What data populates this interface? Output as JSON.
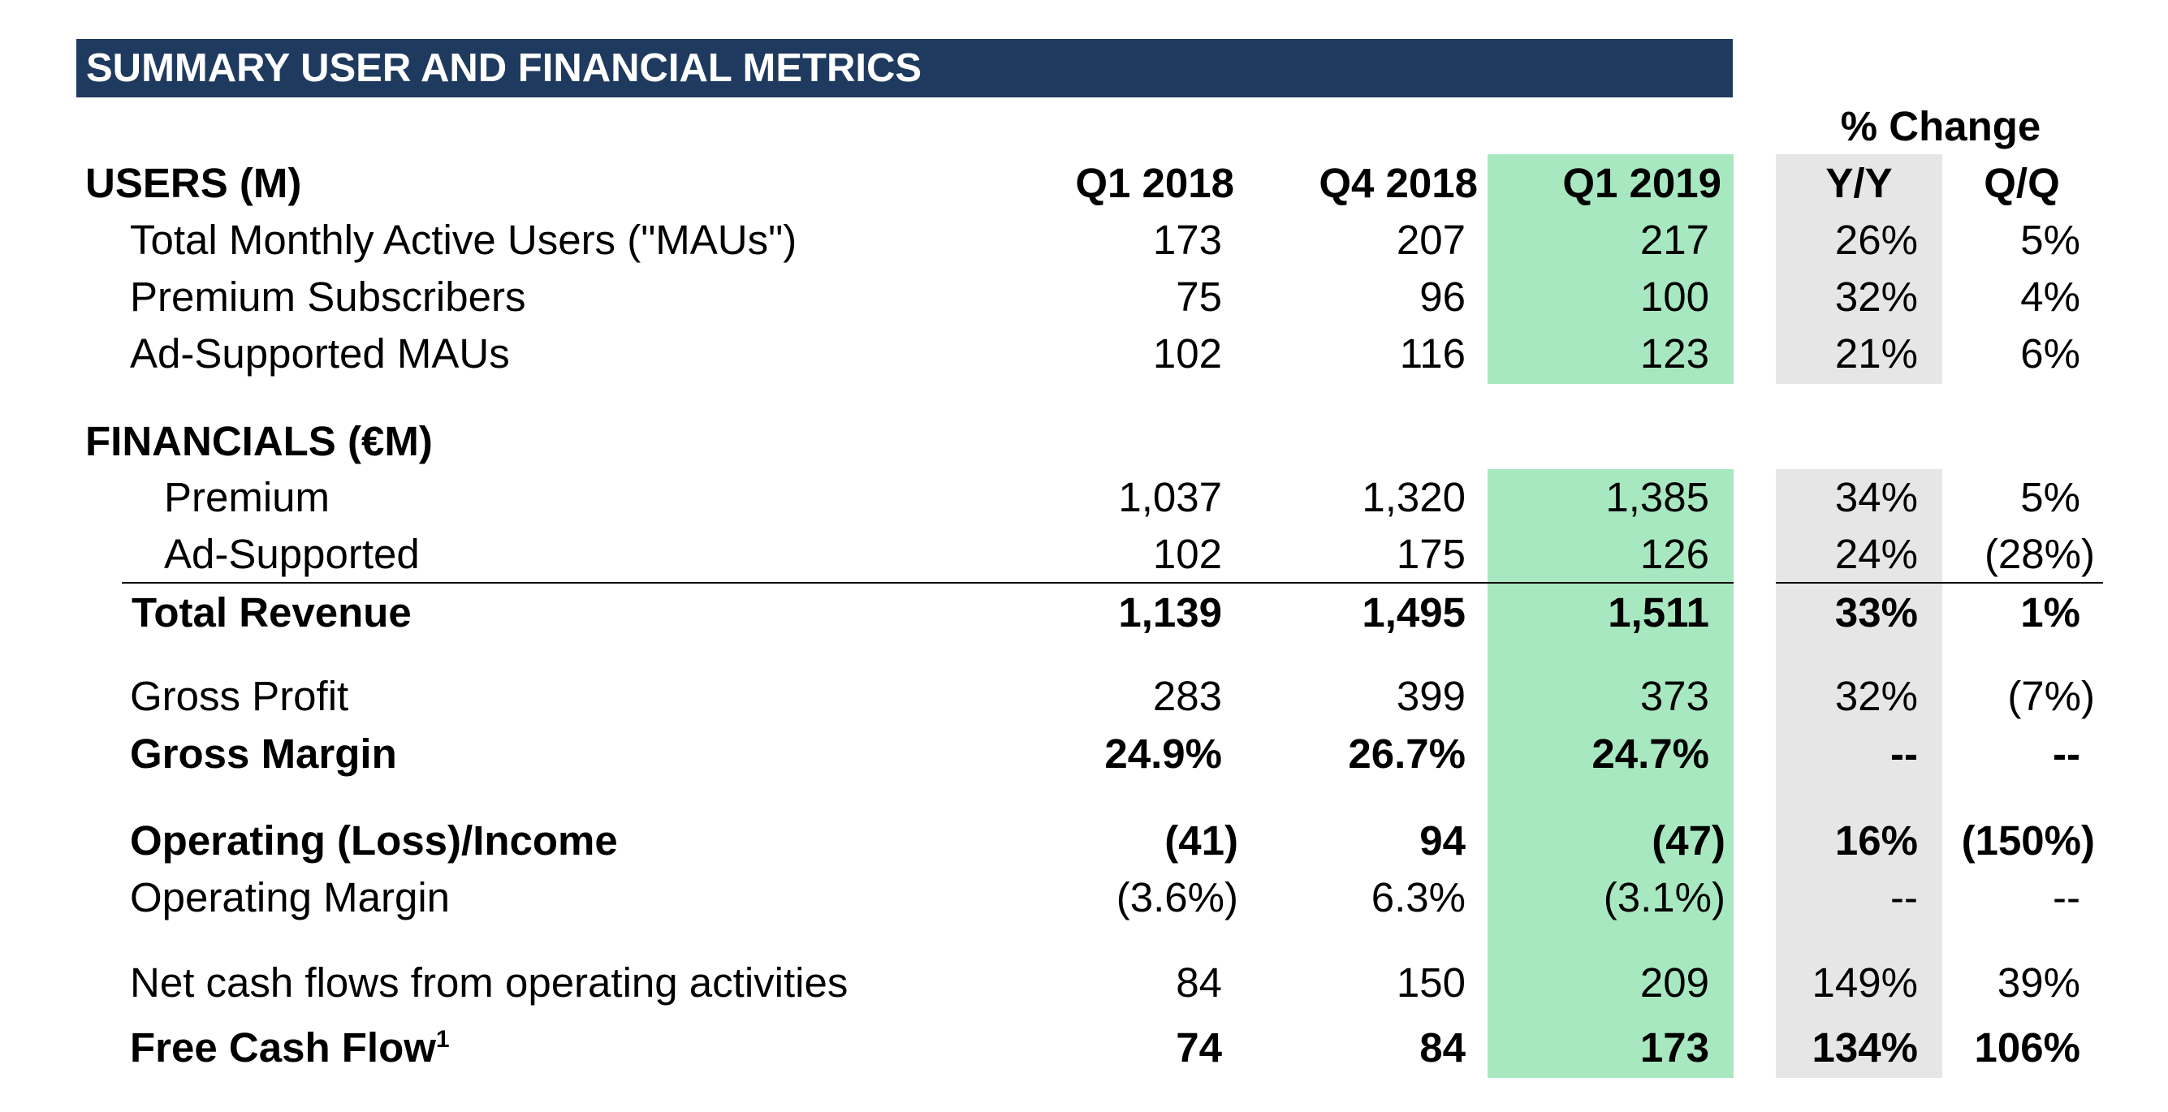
{
  "title": "SUMMARY USER AND FINANCIAL METRICS",
  "change_header": "% Change",
  "columns": [
    "Q1 2018",
    "Q4 2018",
    "Q1 2019",
    "Y/Y",
    "Q/Q"
  ],
  "colors": {
    "banner": "#1f3a5f",
    "highlight": "#a8e8c0",
    "change_shade": "#e6e6e6"
  },
  "users": {
    "heading": "USERS (M)",
    "rows": [
      {
        "label": "Total Monthly Active Users (\"MAUs\")",
        "values": [
          "173",
          "207",
          "217",
          "26%",
          "5%"
        ]
      },
      {
        "label": "Premium Subscribers",
        "values": [
          "75",
          "96",
          "100",
          "32%",
          "4%"
        ]
      },
      {
        "label": "Ad-Supported MAUs",
        "values": [
          "102",
          "116",
          "123",
          "21%",
          "6%"
        ]
      }
    ]
  },
  "financials": {
    "heading": "FINANCIALS (€M)",
    "rows": [
      {
        "label": "Premium",
        "values": [
          "1,037",
          "1,320",
          "1,385",
          "34%",
          "5%"
        ]
      },
      {
        "label": "Ad-Supported",
        "values": [
          "102",
          "175",
          "126",
          "24%",
          "(28%)"
        ]
      },
      {
        "label": "Total Revenue",
        "values": [
          "1,139",
          "1,495",
          "1,511",
          "33%",
          "1%"
        ]
      },
      {
        "label": "Gross Profit",
        "values": [
          "283",
          "399",
          "373",
          "32%",
          "(7%)"
        ]
      },
      {
        "label": "Gross Margin",
        "values": [
          "24.9%",
          "26.7%",
          "24.7%",
          "--",
          "--"
        ]
      },
      {
        "label": "Operating (Loss)/Income",
        "values": [
          "(41)",
          "94",
          "(47)",
          "16%",
          "(150%)"
        ]
      },
      {
        "label": "Operating Margin",
        "values": [
          "(3.6%)",
          "6.3%",
          "(3.1%)",
          "--",
          "--"
        ]
      },
      {
        "label": "Net cash flows from operating activities",
        "values": [
          "84",
          "150",
          "209",
          "149%",
          "39%"
        ]
      },
      {
        "label": "Free Cash Flow",
        "footnote": "1",
        "values": [
          "74",
          "84",
          "173",
          "134%",
          "106%"
        ]
      }
    ]
  }
}
